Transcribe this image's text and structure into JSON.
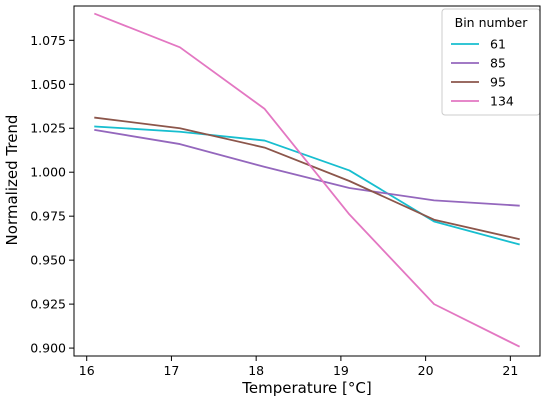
{
  "chart_data": {
    "type": "line",
    "title": "",
    "xlabel": "Temperature [°C]",
    "ylabel": "Normalized Trend",
    "x": [
      16.1,
      17.1,
      18.1,
      19.1,
      20.1,
      21.1
    ],
    "xlim": [
      15.85,
      21.35
    ],
    "ylim": [
      0.8955,
      1.0945
    ],
    "xticks": [
      16,
      17,
      18,
      19,
      20,
      21
    ],
    "xtick_labels": [
      "16",
      "17",
      "18",
      "19",
      "20",
      "21"
    ],
    "yticks": [
      0.9,
      0.925,
      0.95,
      0.975,
      1.0,
      1.025,
      1.05,
      1.075
    ],
    "ytick_labels": [
      "0.900",
      "0.925",
      "0.950",
      "0.975",
      "1.000",
      "1.025",
      "1.050",
      "1.075"
    ],
    "grid": false,
    "legend": {
      "title": "Bin number",
      "placement": "top-right"
    },
    "series": [
      {
        "name": "61",
        "color": "#17becf",
        "values": [
          1.026,
          1.023,
          1.018,
          1.001,
          0.972,
          0.959
        ]
      },
      {
        "name": "85",
        "color": "#9467bd",
        "values": [
          1.024,
          1.016,
          1.003,
          0.991,
          0.984,
          0.981
        ]
      },
      {
        "name": "95",
        "color": "#8c564b",
        "values": [
          1.031,
          1.025,
          1.014,
          0.995,
          0.973,
          0.962
        ]
      },
      {
        "name": "134",
        "color": "#e377c2",
        "values": [
          1.09,
          1.071,
          1.036,
          0.976,
          0.925,
          0.901
        ]
      }
    ]
  }
}
